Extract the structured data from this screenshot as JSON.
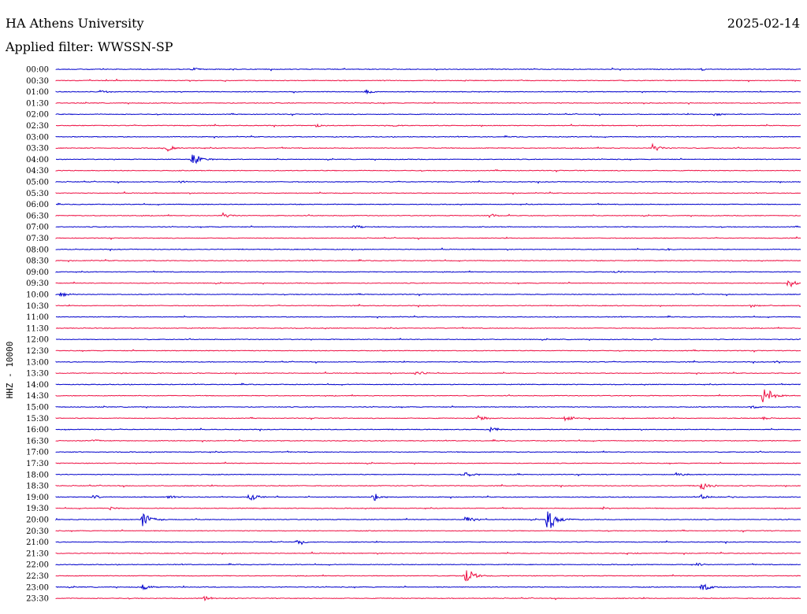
{
  "header": {
    "station": "HA Athens University",
    "date": "2025-02-14",
    "filter": "Applied filter: WWSSN-SP"
  },
  "chart_data": {
    "type": "line",
    "ylabel": "HHZ - 10000",
    "trace_colors": [
      "#0000cc",
      "#ee1144"
    ],
    "x_range": [
      0,
      30
    ],
    "x_unit": "minutes",
    "rows": [
      {
        "label": "00:00",
        "events": [
          {
            "x": 5.5,
            "amp": 2
          },
          {
            "x": 26.0,
            "amp": 1.5
          }
        ]
      },
      {
        "label": "00:30",
        "events": []
      },
      {
        "label": "01:00",
        "events": [
          {
            "x": 1.8,
            "amp": 2
          },
          {
            "x": 12.5,
            "amp": 3
          }
        ]
      },
      {
        "label": "01:30",
        "events": [
          {
            "x": 23.0,
            "amp": 1
          }
        ]
      },
      {
        "label": "02:00",
        "events": [
          {
            "x": 26.5,
            "amp": 2
          }
        ]
      },
      {
        "label": "02:30",
        "events": [
          {
            "x": 10.5,
            "amp": 2
          },
          {
            "x": 13.5,
            "amp": 1.5
          }
        ]
      },
      {
        "label": "03:00",
        "events": []
      },
      {
        "label": "03:30",
        "events": [
          {
            "x": 4.5,
            "amp": 4
          },
          {
            "x": 24.0,
            "amp": 6
          }
        ]
      },
      {
        "label": "04:00",
        "events": [
          {
            "x": 5.5,
            "amp": 9
          }
        ]
      },
      {
        "label": "04:30",
        "events": []
      },
      {
        "label": "05:00",
        "events": [
          {
            "x": 5.0,
            "amp": 1.5
          }
        ]
      },
      {
        "label": "05:30",
        "events": []
      },
      {
        "label": "06:00",
        "events": []
      },
      {
        "label": "06:30",
        "events": [
          {
            "x": 6.7,
            "amp": 4
          },
          {
            "x": 17.5,
            "amp": 3
          }
        ]
      },
      {
        "label": "07:00",
        "events": [
          {
            "x": 12.0,
            "amp": 3
          }
        ]
      },
      {
        "label": "07:30",
        "events": []
      },
      {
        "label": "08:00",
        "events": [
          {
            "x": 24.5,
            "amp": 1.5
          }
        ]
      },
      {
        "label": "08:30",
        "events": []
      },
      {
        "label": "09:00",
        "events": [
          {
            "x": 22.5,
            "amp": 1.5
          }
        ]
      },
      {
        "label": "09:30",
        "events": [
          {
            "x": 29.5,
            "amp": 6
          }
        ]
      },
      {
        "label": "10:00",
        "events": [
          {
            "x": 0.2,
            "amp": 3
          }
        ]
      },
      {
        "label": "10:30",
        "events": [
          {
            "x": 28.0,
            "amp": 2
          }
        ]
      },
      {
        "label": "11:00",
        "events": []
      },
      {
        "label": "11:30",
        "events": []
      },
      {
        "label": "12:00",
        "events": [
          {
            "x": 24.0,
            "amp": 1.5
          }
        ]
      },
      {
        "label": "12:30",
        "events": []
      },
      {
        "label": "13:00",
        "events": [
          {
            "x": 29.0,
            "amp": 1.5
          }
        ]
      },
      {
        "label": "13:30",
        "events": [
          {
            "x": 14.5,
            "amp": 3
          }
        ]
      },
      {
        "label": "14:00",
        "events": []
      },
      {
        "label": "14:30",
        "events": [
          {
            "x": 28.5,
            "amp": 14
          }
        ]
      },
      {
        "label": "15:00",
        "events": [
          {
            "x": 28.0,
            "amp": 2
          }
        ]
      },
      {
        "label": "15:30",
        "events": [
          {
            "x": 17.0,
            "amp": 4
          },
          {
            "x": 20.5,
            "amp": 4
          },
          {
            "x": 28.5,
            "amp": 2
          }
        ]
      },
      {
        "label": "16:00",
        "events": [
          {
            "x": 17.5,
            "amp": 3
          }
        ]
      },
      {
        "label": "16:30",
        "events": [
          {
            "x": 1.5,
            "amp": 2
          }
        ]
      },
      {
        "label": "17:00",
        "events": []
      },
      {
        "label": "17:30",
        "events": []
      },
      {
        "label": "18:00",
        "events": [
          {
            "x": 16.5,
            "amp": 4
          },
          {
            "x": 25.0,
            "amp": 3
          }
        ]
      },
      {
        "label": "18:30",
        "events": [
          {
            "x": 26.0,
            "amp": 7
          }
        ]
      },
      {
        "label": "19:00",
        "events": [
          {
            "x": 1.5,
            "amp": 3
          },
          {
            "x": 4.5,
            "amp": 3
          },
          {
            "x": 7.8,
            "amp": 6
          },
          {
            "x": 12.8,
            "amp": 6
          },
          {
            "x": 26.0,
            "amp": 3
          }
        ]
      },
      {
        "label": "19:30",
        "events": [
          {
            "x": 2.2,
            "amp": 2
          },
          {
            "x": 22.0,
            "amp": 2
          }
        ]
      },
      {
        "label": "20:00",
        "events": [
          {
            "x": 3.5,
            "amp": 11
          },
          {
            "x": 16.5,
            "amp": 5
          },
          {
            "x": 19.8,
            "amp": 18
          }
        ]
      },
      {
        "label": "20:30",
        "events": []
      },
      {
        "label": "21:00",
        "events": [
          {
            "x": 9.7,
            "amp": 3
          }
        ]
      },
      {
        "label": "21:30",
        "events": [
          {
            "x": 23.0,
            "amp": 2
          }
        ]
      },
      {
        "label": "22:00",
        "events": [
          {
            "x": 25.8,
            "amp": 2
          }
        ]
      },
      {
        "label": "22:30",
        "events": [
          {
            "x": 16.5,
            "amp": 12
          }
        ]
      },
      {
        "label": "23:00",
        "events": [
          {
            "x": 3.5,
            "amp": 4
          },
          {
            "x": 26.0,
            "amp": 6
          }
        ]
      },
      {
        "label": "23:30",
        "events": [
          {
            "x": 6.0,
            "amp": 3
          }
        ]
      }
    ]
  }
}
